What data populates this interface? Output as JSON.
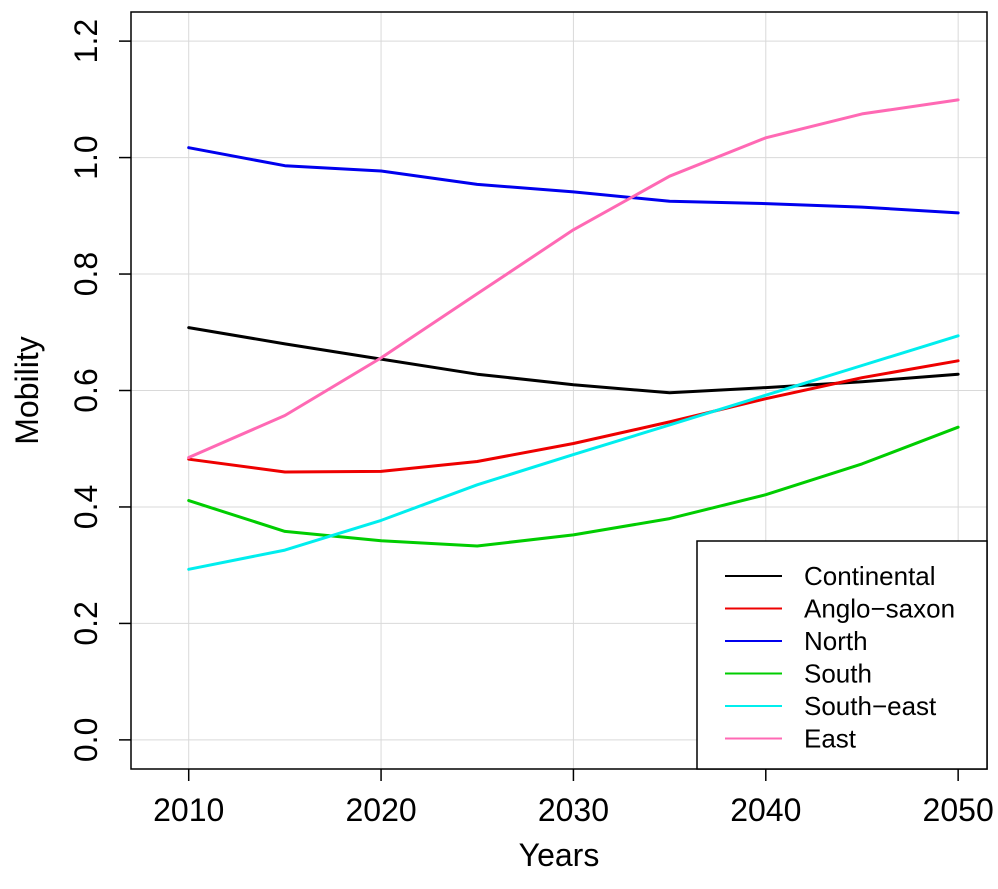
{
  "chart_data": {
    "type": "line",
    "title": "",
    "xlabel": "Years",
    "ylabel": "Mobility",
    "xlim": [
      2007,
      2051.5
    ],
    "ylim": [
      -0.05,
      1.25
    ],
    "xticks": [
      2010,
      2020,
      2030,
      2040,
      2050
    ],
    "xtick_labels": [
      "2010",
      "2020",
      "2030",
      "2040",
      "2050"
    ],
    "yticks": [
      0.0,
      0.2,
      0.4,
      0.6,
      0.8,
      1.0,
      1.2
    ],
    "ytick_labels": [
      "0.0",
      "0.2",
      "0.4",
      "0.6",
      "0.8",
      "1.0",
      "1.2"
    ],
    "grid": true,
    "legend_position": "bottom-right",
    "x": [
      2010,
      2015,
      2020,
      2025,
      2030,
      2035,
      2040,
      2045,
      2050
    ],
    "series": [
      {
        "name": "Continental",
        "color": "#000000",
        "values": [
          0.708,
          0.68,
          0.654,
          0.628,
          0.61,
          0.596,
          0.605,
          0.615,
          0.628
        ]
      },
      {
        "name": "Anglo−saxon",
        "color": "#ee0000",
        "values": [
          0.482,
          0.46,
          0.461,
          0.478,
          0.509,
          0.546,
          0.586,
          0.622,
          0.651
        ]
      },
      {
        "name": "North",
        "color": "#0000ee",
        "values": [
          1.017,
          0.986,
          0.977,
          0.954,
          0.941,
          0.925,
          0.921,
          0.915,
          0.905
        ]
      },
      {
        "name": "South",
        "color": "#00cd00",
        "values": [
          0.411,
          0.358,
          0.342,
          0.333,
          0.352,
          0.38,
          0.421,
          0.474,
          0.537
        ]
      },
      {
        "name": "South−east",
        "color": "#00eeee",
        "values": [
          0.293,
          0.326,
          0.377,
          0.438,
          0.49,
          0.541,
          0.592,
          0.643,
          0.694
        ]
      },
      {
        "name": "East",
        "color": "#ff69b4",
        "values": [
          0.485,
          0.557,
          0.656,
          0.766,
          0.876,
          0.968,
          1.034,
          1.075,
          1.099
        ]
      }
    ]
  }
}
